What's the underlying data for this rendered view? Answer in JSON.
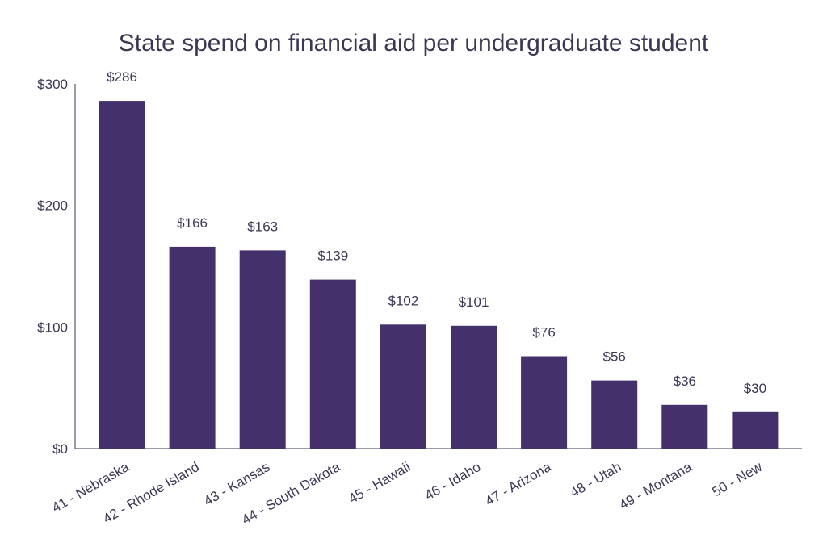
{
  "chart_data": {
    "type": "bar",
    "title": "State spend on financial aid per undergraduate student",
    "xlabel": "",
    "ylabel": "",
    "categories": [
      "41 - Nebraska",
      "42 - Rhode Island",
      "43 - Kansas",
      "44 - South Dakota",
      "45 - Hawaii",
      "46 - Idaho",
      "47 - Arizona",
      "48 - Utah",
      "49 - Montana",
      "50 - New"
    ],
    "values": [
      286,
      166,
      163,
      139,
      102,
      101,
      76,
      56,
      36,
      30
    ],
    "data_labels": [
      "$286",
      "$166",
      "$163",
      "$139",
      "$102",
      "$101",
      "$76",
      "$56",
      "$36",
      "$30"
    ],
    "ylim": [
      0,
      300
    ],
    "yticks": [
      0,
      100,
      200,
      300
    ],
    "ytick_labels": [
      "$0",
      "$100",
      "$200",
      "$300"
    ],
    "grid": false,
    "legend": "none",
    "bar_color": "#44306a"
  }
}
